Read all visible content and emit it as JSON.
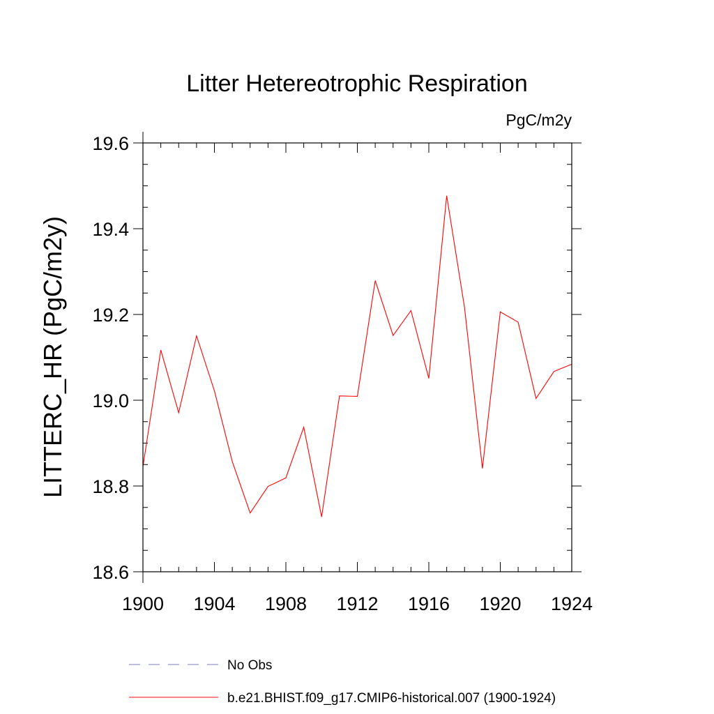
{
  "chart_data": {
    "type": "line",
    "title": "Litter Hetereotrophic Respiration",
    "units": "PgC/m2y",
    "ylabel": "LITTERC_HR  (PgC/m2y)",
    "xlabel": "",
    "xlim": [
      1900,
      1924
    ],
    "ylim": [
      18.6,
      19.6
    ],
    "xticks": [
      "1900",
      "1904",
      "1908",
      "1912",
      "1916",
      "1920",
      "1924"
    ],
    "yticks": [
      "18.6",
      "18.8",
      "19.0",
      "19.2",
      "19.4",
      "19.6"
    ],
    "grid": false,
    "legend_position": "bottom",
    "x": [
      1900,
      1901,
      1902,
      1903,
      1904,
      1905,
      1906,
      1907,
      1908,
      1909,
      1910,
      1911,
      1912,
      1913,
      1914,
      1915,
      1916,
      1917,
      1918,
      1919,
      1920,
      1921,
      1922,
      1923,
      1924
    ],
    "series": [
      {
        "name": "b.e21.BHIST.f09_g17.CMIP6-historical.007 (1900-1924)",
        "color": "#ff0000",
        "style": "solid",
        "values": [
          18.845,
          19.117,
          18.971,
          19.15,
          19.022,
          18.857,
          18.737,
          18.799,
          18.819,
          18.937,
          18.728,
          19.01,
          19.009,
          19.279,
          19.151,
          19.209,
          19.051,
          19.477,
          19.216,
          18.841,
          19.206,
          19.182,
          19.004,
          19.067,
          19.084
        ]
      }
    ],
    "legend": [
      {
        "label": "No Obs",
        "color": "#7b7bbd",
        "style": "dashed"
      },
      {
        "label": "b.e21.BHIST.f09_g17.CMIP6-historical.007 (1900-1924)",
        "color": "#ff0000",
        "style": "solid"
      }
    ]
  }
}
